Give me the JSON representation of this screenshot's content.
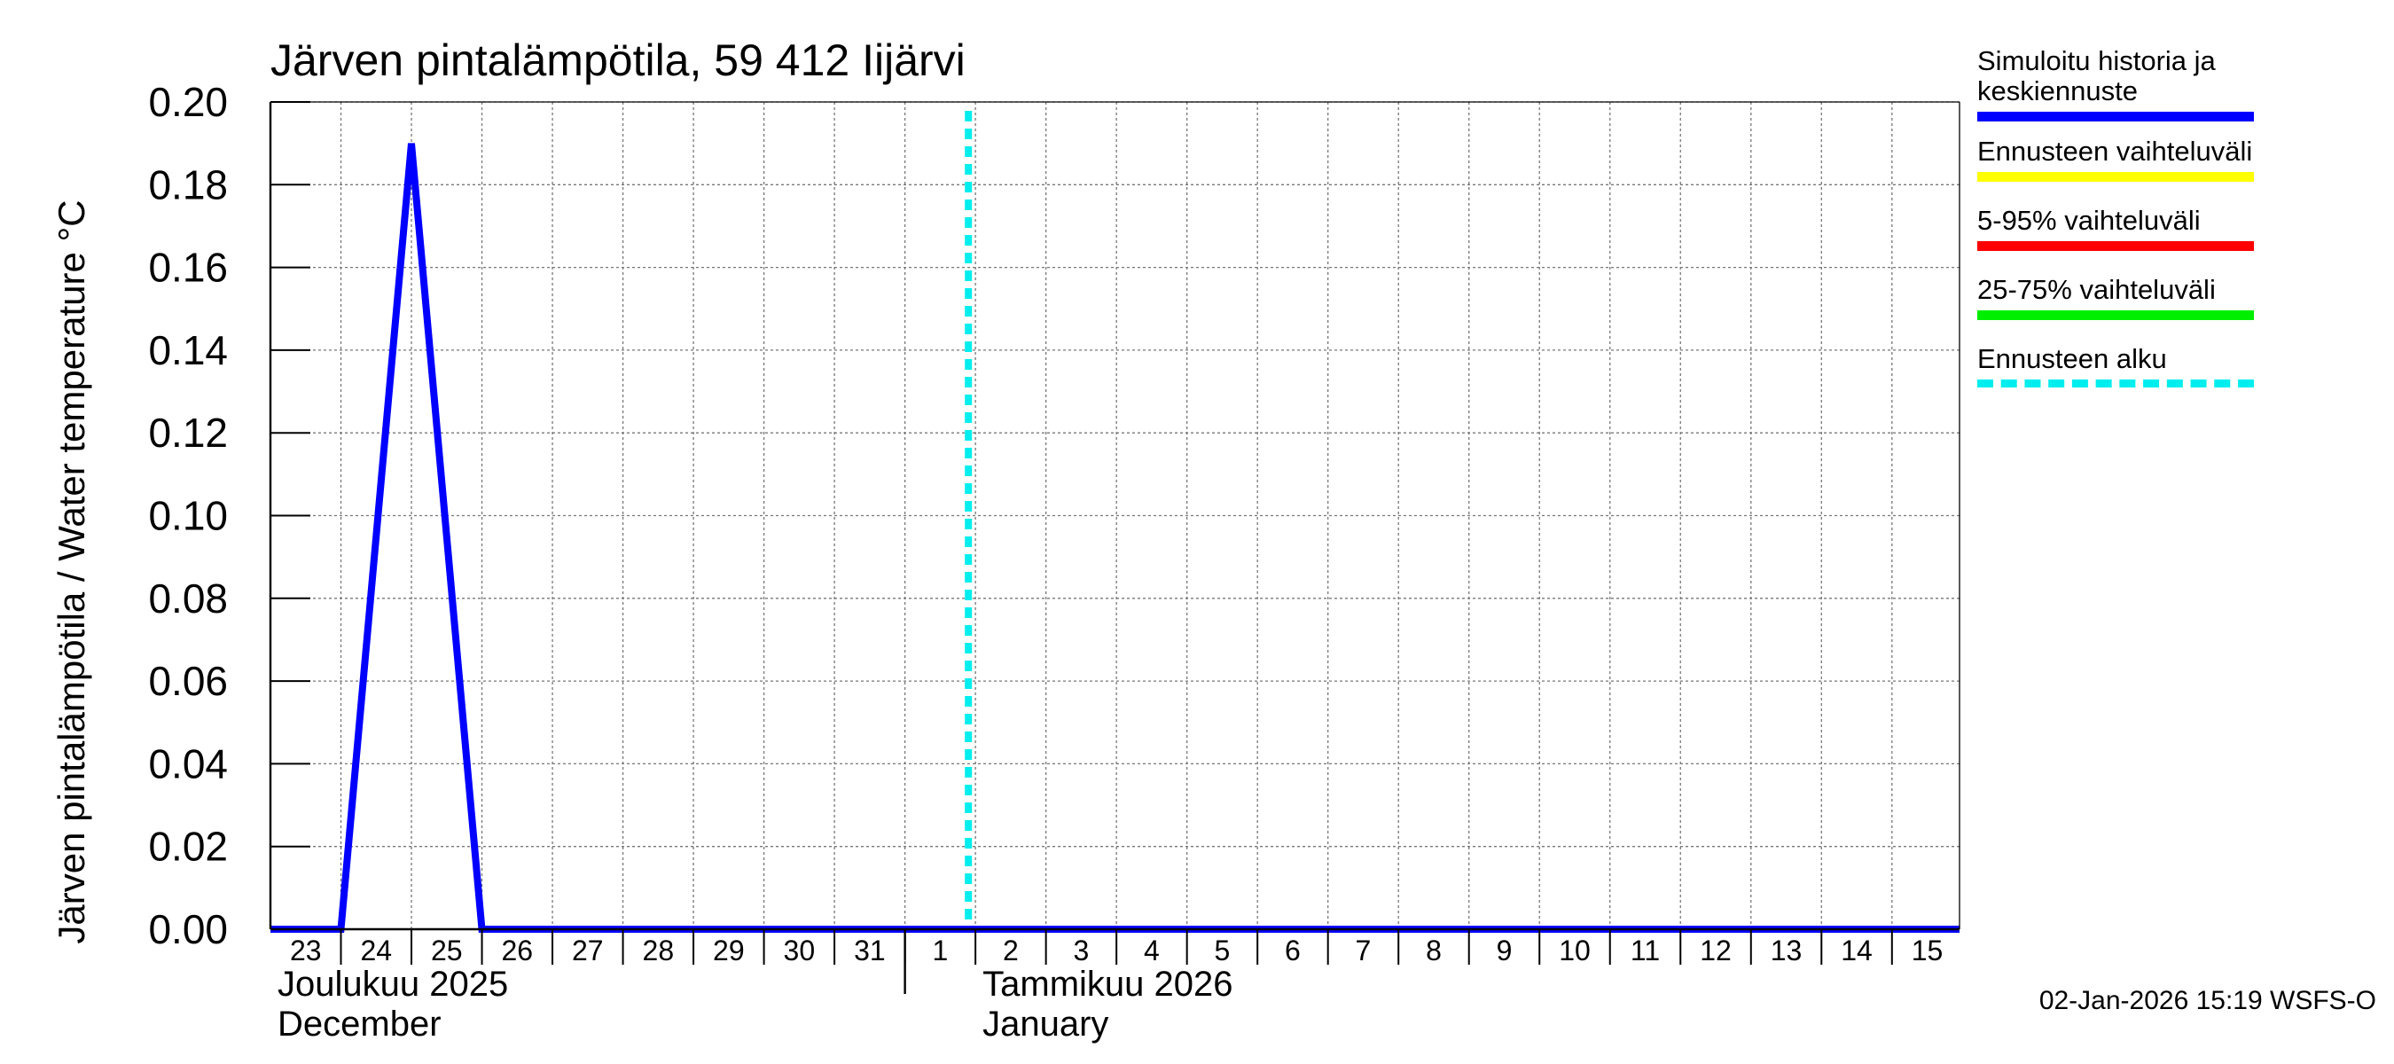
{
  "chart_data": {
    "type": "line",
    "title": "Järven pintalämpötila, 59 412 Iijärvi",
    "ylabel": "Järven pintalämpötila / Water temperature °C",
    "ylim": [
      0,
      0.2
    ],
    "yticks": [
      "0.00",
      "0.02",
      "0.04",
      "0.06",
      "0.08",
      "0.10",
      "0.12",
      "0.14",
      "0.16",
      "0.18",
      "0.20"
    ],
    "xlim": [
      "2025-12-23",
      "2026-01-15T23:00"
    ],
    "day_labels": [
      "23",
      "24",
      "25",
      "26",
      "27",
      "28",
      "29",
      "30",
      "31",
      "1",
      "2",
      "3",
      "4",
      "5",
      "6",
      "7",
      "8",
      "9",
      "10",
      "11",
      "12",
      "13",
      "14",
      "15"
    ],
    "month_labels": [
      {
        "fi": "Joulukuu  2025",
        "en": "December",
        "start": "2025-12-23"
      },
      {
        "fi": "Tammikuu  2026",
        "en": "January",
        "start": "2026-01-02"
      }
    ],
    "series": [
      {
        "name": "Simuloitu historia ja keskiennuste",
        "color": "#0000ff",
        "points": [
          [
            "2025-12-23",
            0.0
          ],
          [
            "2025-12-24",
            0.0
          ],
          [
            "2025-12-25",
            0.19
          ],
          [
            "2025-12-26",
            0.0
          ],
          [
            "2026-01-15T23:00",
            0.0
          ]
        ]
      }
    ],
    "forecast_start": "2026-01-02",
    "grid": true
  },
  "legend": [
    {
      "label": "Simuloitu historia ja keskiennuste",
      "color": "#0000ff",
      "style": "solid"
    },
    {
      "label": "Ennusteen vaihteluväli",
      "color": "#ffff00",
      "style": "solid"
    },
    {
      "label": "5-95% vaihteluväli",
      "color": "#ff0000",
      "style": "solid"
    },
    {
      "label": "25-75% vaihteluväli",
      "color": "#00ee00",
      "style": "solid"
    },
    {
      "label": "Ennusteen alku",
      "color": "#00eeee",
      "style": "dashed"
    }
  ],
  "footer": "02-Jan-2026 15:19 WSFS-O"
}
